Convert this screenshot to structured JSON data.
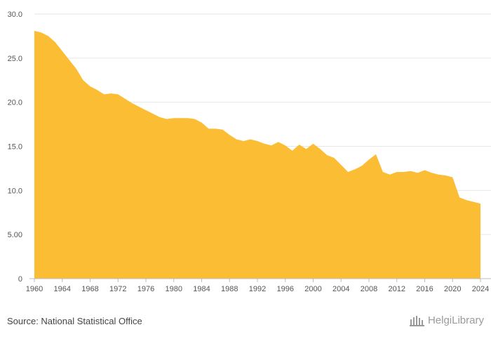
{
  "chart_data": {
    "type": "area",
    "title": "",
    "xlabel": "",
    "ylabel": "",
    "x": [
      1960,
      1961,
      1962,
      1963,
      1964,
      1965,
      1966,
      1967,
      1968,
      1969,
      1970,
      1971,
      1972,
      1973,
      1974,
      1975,
      1976,
      1977,
      1978,
      1979,
      1980,
      1981,
      1982,
      1983,
      1984,
      1985,
      1986,
      1987,
      1988,
      1989,
      1990,
      1991,
      1992,
      1993,
      1994,
      1995,
      1996,
      1997,
      1998,
      1999,
      2000,
      2001,
      2002,
      2003,
      2004,
      2005,
      2006,
      2007,
      2008,
      2009,
      2010,
      2011,
      2012,
      2013,
      2014,
      2015,
      2016,
      2017,
      2018,
      2019,
      2020,
      2021,
      2022,
      2023,
      2024
    ],
    "series": [
      {
        "values": [
          28.1,
          27.9,
          27.5,
          26.8,
          25.8,
          24.8,
          23.8,
          22.5,
          21.8,
          21.4,
          20.9,
          21.0,
          20.9,
          20.4,
          19.9,
          19.5,
          19.1,
          18.7,
          18.3,
          18.1,
          18.2,
          18.2,
          18.2,
          18.1,
          17.7,
          17.0,
          17.0,
          16.9,
          16.3,
          15.8,
          15.6,
          15.8,
          15.6,
          15.3,
          15.1,
          15.5,
          15.1,
          14.5,
          15.2,
          14.7,
          15.3,
          14.7,
          14.0,
          13.7,
          12.9,
          12.1,
          12.4,
          12.8,
          13.5,
          14.1,
          12.1,
          11.8,
          12.1,
          12.1,
          12.2,
          12.0,
          12.3,
          12.0,
          11.8,
          11.7,
          11.5,
          9.2,
          8.9,
          8.7,
          8.5
        ]
      }
    ],
    "ylim": [
      0,
      30
    ],
    "yticks": [
      0,
      5,
      10,
      15,
      20,
      25,
      30
    ],
    "ytick_labels": [
      "0",
      "5.00",
      "10.0",
      "15.0",
      "20.0",
      "25.0",
      "30.0"
    ],
    "xticks": [
      1960,
      1964,
      1968,
      1972,
      1976,
      1980,
      1984,
      1988,
      1992,
      1996,
      2000,
      2004,
      2008,
      2012,
      2016,
      2020,
      2024
    ],
    "xtick_labels": [
      "1960",
      "1964",
      "1968",
      "1972",
      "1976",
      "1980",
      "1984",
      "1988",
      "1992",
      "1996",
      "2000",
      "2004",
      "2008",
      "2012",
      "2016",
      "2020",
      "2024"
    ],
    "grid": true,
    "colors": {
      "fill": "#FBBD33",
      "grid": "#E6E6E6",
      "axis": "#BBBBBB"
    }
  },
  "source_text": "Source: National Statistical Office",
  "logo": {
    "icon": "helgi-library-logo-icon",
    "text": "HelgiLibrary"
  }
}
